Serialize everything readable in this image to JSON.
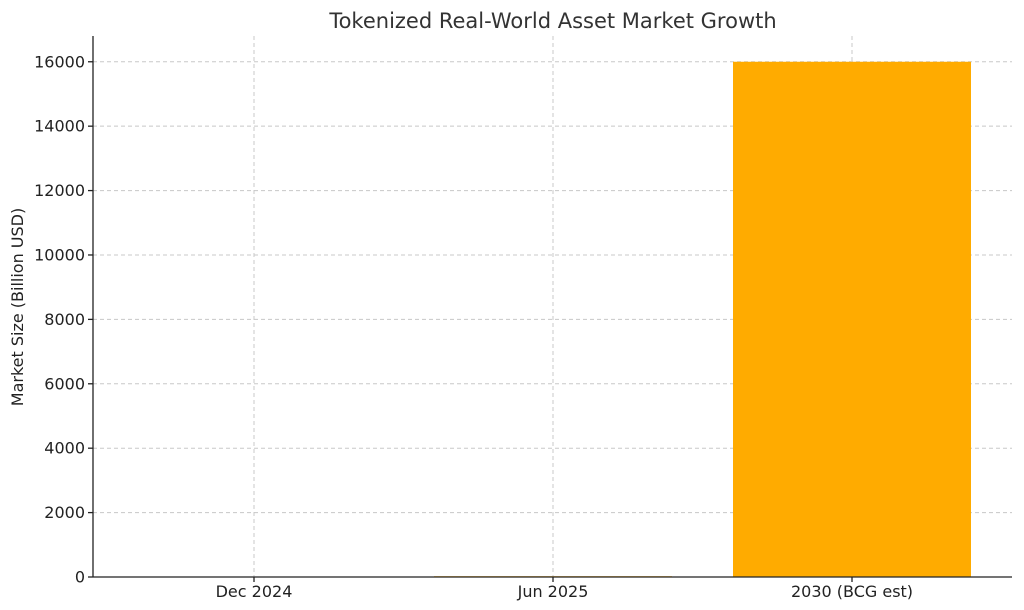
{
  "chart_data": {
    "type": "bar",
    "title": "Tokenized Real-World Asset Market Growth",
    "xlabel": "",
    "ylabel": "Market Size (Billion USD)",
    "categories": [
      "Dec 2024",
      "Jun 2025",
      "2030 (BCG est)"
    ],
    "values": [
      6,
      24,
      16000
    ],
    "ylim": [
      0,
      16800
    ],
    "yticks": [
      0,
      2000,
      4000,
      6000,
      8000,
      10000,
      12000,
      14000,
      16000
    ],
    "grid": true,
    "bar_color": "#ffab00"
  }
}
